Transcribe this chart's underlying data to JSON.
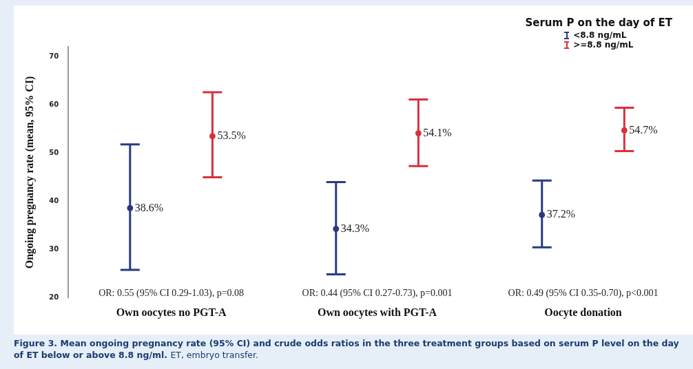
{
  "chart_data": {
    "type": "scatter",
    "ylabel": "Ongoing pregnancy rate (mean, 95% CI)",
    "legend_title": "Serum P on the day of ET",
    "categories": [
      "Own oocytes no PGT-A",
      "Own oocytes with PGT-A",
      "Oocyte donation"
    ],
    "series": [
      {
        "name": "<8.8 ng/mL",
        "color": "#283a84",
        "values": [
          38.6,
          34.3,
          37.2
        ],
        "errors": [
          [
            25.8,
            51.8
          ],
          [
            24.9,
            44.0
          ],
          [
            30.5,
            44.3
          ]
        ],
        "value_labels": [
          "38.6%",
          "34.3%",
          "37.2%"
        ]
      },
      {
        "name": ">=8.8 ng/mL",
        "color": "#d9303b",
        "values": [
          53.5,
          54.1,
          54.7
        ],
        "errors": [
          [
            45.0,
            62.6
          ],
          [
            47.3,
            61.1
          ],
          [
            50.4,
            59.4
          ]
        ],
        "value_labels": [
          "53.5%",
          "54.1%",
          "54.7%"
        ]
      }
    ],
    "ylim": [
      20,
      72
    ],
    "yticks": [
      20,
      30,
      40,
      50,
      60,
      70
    ],
    "grid": false,
    "legend": "top right",
    "marker": "circle",
    "annotations": [
      "OR: 0.55 (95% CI 0.29-1.03), p=0.08",
      "OR: 0.44 (95% CI 0.27-0.73), p=0.001",
      "OR: 0.49 (95% CI 0.35-0.70), p<0.001",
      "Figure 3. Mean ongoing pregnancy rate (95% CI) and crude odds ratios in the three treatment groups based on serum P level on the day of ET below or above 8.8 ng/ml.",
      "ET, embryo transfer."
    ]
  }
}
